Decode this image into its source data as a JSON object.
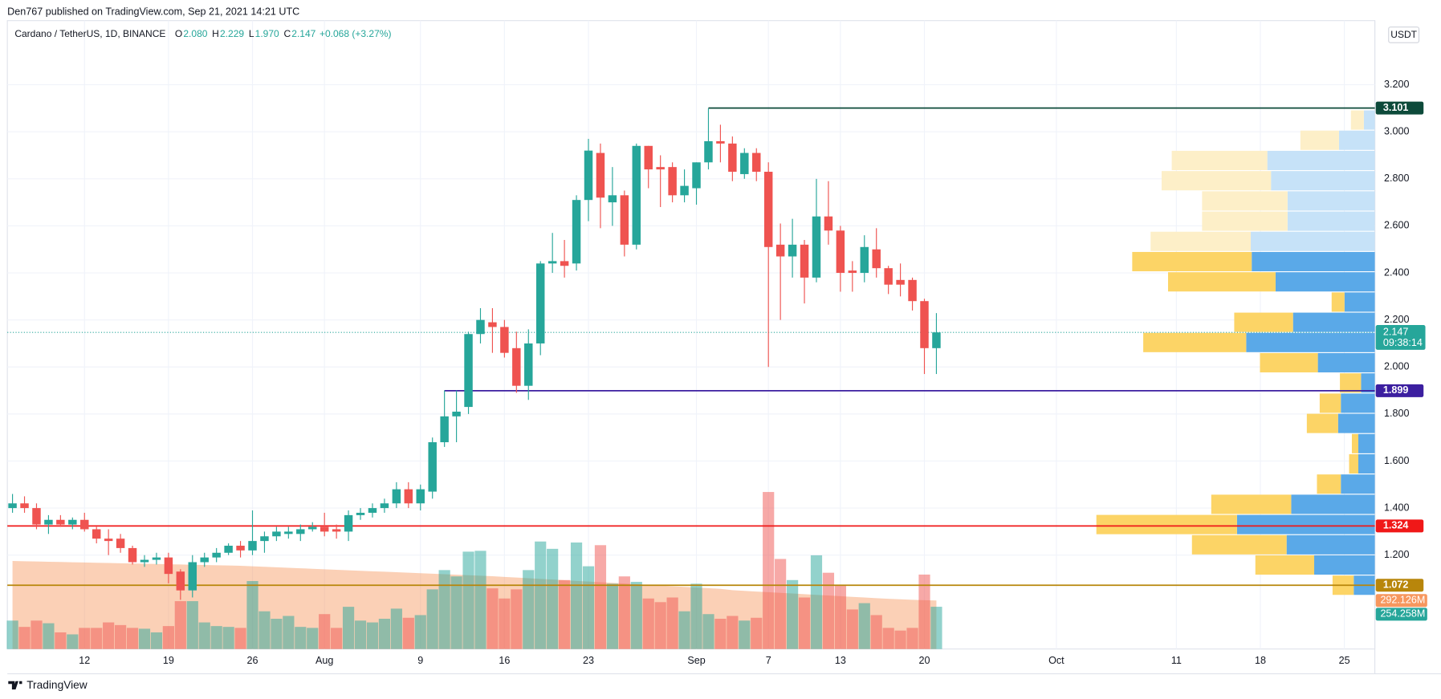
{
  "chart_data": {
    "type": "candlestick",
    "header": "Den767 published on TradingView.com, Sep 21, 2021 14:21 UTC",
    "title": "Cardano / TetherUS, 1D, BINANCE",
    "legend": [
      {
        "key": "O",
        "value": "2.080"
      },
      {
        "key": "H",
        "value": "2.229"
      },
      {
        "key": "L",
        "value": "1.970"
      },
      {
        "key": "C",
        "value": "2.147"
      }
    ],
    "change": "+0.068 (+3.27%)",
    "currency": "USDT",
    "countdown": "09:38:14",
    "brand": "TradingView",
    "up_color": "#26a69a",
    "down_color": "#ef5350",
    "open": [
      1.4,
      1.42,
      1.4,
      1.33,
      1.35,
      1.33,
      1.35,
      1.31,
      1.27,
      1.27,
      1.23,
      1.17,
      1.18,
      1.19,
      1.13,
      1.05,
      1.17,
      1.19,
      1.21,
      1.24,
      1.22,
      1.26,
      1.28,
      1.29,
      1.29,
      1.31,
      1.32,
      1.31,
      1.3,
      1.37,
      1.38,
      1.4,
      1.42,
      1.48,
      1.42,
      1.47,
      1.68,
      1.79,
      1.83,
      2.14,
      2.19,
      2.17,
      2.08,
      1.92,
      2.1,
      2.44,
      2.45,
      2.44,
      2.71,
      2.91,
      2.7,
      2.73,
      2.52,
      2.94,
      2.85,
      2.85,
      2.73,
      2.76,
      2.87,
      2.96,
      2.95,
      2.82,
      2.91,
      2.83,
      2.52,
      2.47,
      2.52,
      2.38,
      2.64,
      2.58,
      2.41,
      2.4,
      2.5,
      2.42,
      2.37,
      2.37,
      2.28,
      2.08
    ],
    "high": [
      1.46,
      1.45,
      1.42,
      1.37,
      1.37,
      1.36,
      1.38,
      1.32,
      1.31,
      1.29,
      1.24,
      1.2,
      1.21,
      1.21,
      1.14,
      1.2,
      1.21,
      1.23,
      1.25,
      1.26,
      1.39,
      1.3,
      1.32,
      1.32,
      1.33,
      1.34,
      1.38,
      1.33,
      1.39,
      1.4,
      1.42,
      1.44,
      1.51,
      1.51,
      1.5,
      1.7,
      1.9,
      1.9,
      2.15,
      2.25,
      2.25,
      2.2,
      2.15,
      2.16,
      2.45,
      2.57,
      2.54,
      2.73,
      2.97,
      2.95,
      2.85,
      2.75,
      2.95,
      2.94,
      2.9,
      2.87,
      2.84,
      2.87,
      3.1,
      3.03,
      2.98,
      2.93,
      2.93,
      2.87,
      2.61,
      2.63,
      2.54,
      2.8,
      2.79,
      2.6,
      2.45,
      2.56,
      2.59,
      2.43,
      2.44,
      2.38,
      2.29,
      2.229
    ],
    "low": [
      1.38,
      1.38,
      1.31,
      1.29,
      1.32,
      1.31,
      1.3,
      1.25,
      1.2,
      1.21,
      1.16,
      1.15,
      1.16,
      1.08,
      1.01,
      1.02,
      1.15,
      1.17,
      1.2,
      1.19,
      1.2,
      1.21,
      1.26,
      1.27,
      1.26,
      1.3,
      1.28,
      1.27,
      1.26,
      1.35,
      1.36,
      1.38,
      1.4,
      1.4,
      1.39,
      1.44,
      1.66,
      1.68,
      1.8,
      2.1,
      2.06,
      2.04,
      1.89,
      1.86,
      2.05,
      2.4,
      2.38,
      2.41,
      2.62,
      2.59,
      2.6,
      2.47,
      2.5,
      2.76,
      2.68,
      2.7,
      2.7,
      2.69,
      2.84,
      2.87,
      2.79,
      2.8,
      2.79,
      2.0,
      2.2,
      2.38,
      2.27,
      2.36,
      2.52,
      2.32,
      2.32,
      2.36,
      2.38,
      2.31,
      2.3,
      2.24,
      1.97,
      1.97
    ],
    "close": [
      1.42,
      1.4,
      1.33,
      1.35,
      1.33,
      1.35,
      1.31,
      1.27,
      1.26,
      1.23,
      1.17,
      1.18,
      1.19,
      1.12,
      1.05,
      1.17,
      1.19,
      1.21,
      1.24,
      1.22,
      1.26,
      1.28,
      1.3,
      1.3,
      1.31,
      1.32,
      1.3,
      1.3,
      1.37,
      1.38,
      1.4,
      1.42,
      1.48,
      1.42,
      1.48,
      1.68,
      1.79,
      1.81,
      2.14,
      2.2,
      2.17,
      2.06,
      1.92,
      2.1,
      2.44,
      2.45,
      2.43,
      2.71,
      2.92,
      2.72,
      2.73,
      2.52,
      2.94,
      2.84,
      2.84,
      2.73,
      2.77,
      2.87,
      2.96,
      2.95,
      2.83,
      2.91,
      2.83,
      2.51,
      2.47,
      2.52,
      2.38,
      2.64,
      2.58,
      2.4,
      2.4,
      2.51,
      2.42,
      2.35,
      2.35,
      2.28,
      2.08,
      2.147
    ],
    "volume": [
      171,
      133,
      171,
      155,
      100,
      88,
      127,
      127,
      160,
      144,
      127,
      122,
      100,
      138,
      288,
      288,
      160,
      138,
      133,
      127,
      409,
      227,
      182,
      199,
      133,
      127,
      210,
      127,
      254,
      171,
      160,
      182,
      243,
      188,
      204,
      359,
      475,
      437,
      586,
      591,
      365,
      304,
      359,
      475,
      647,
      603,
      415,
      641,
      498,
      625,
      393,
      437,
      404,
      304,
      282,
      310,
      227,
      393,
      210,
      182,
      199,
      171,
      188,
      945,
      542,
      415,
      310,
      564,
      459,
      387,
      238,
      276,
      204,
      127,
      111,
      127,
      448,
      254.258
    ],
    "volume_label": "254.258M",
    "volume_ma": [
      530,
      528,
      527,
      525,
      524,
      522,
      521,
      519,
      518,
      516,
      515,
      513,
      512,
      510,
      509,
      507,
      506,
      504,
      503,
      501,
      498,
      495,
      492,
      489,
      486,
      483,
      480,
      477,
      474,
      471,
      468,
      465,
      462,
      459,
      456,
      453,
      450,
      447,
      444,
      441,
      438,
      434,
      430,
      426,
      422,
      418,
      414,
      410,
      406,
      402,
      398,
      394,
      390,
      386,
      382,
      378,
      374,
      370,
      366,
      362,
      354,
      350,
      346,
      342,
      338,
      334,
      330,
      326,
      322,
      318,
      314,
      310,
      306,
      302,
      299,
      296,
      294,
      292.126
    ],
    "volume_ma_label": "292.126M",
    "volume_ma_color": "#f7975e",
    "volume_ylim": [
      0,
      1200
    ],
    "ylim": [
      0.8008,
      3.4727
    ],
    "yticks": [
      {
        "value": 1.2,
        "label": "1.200"
      },
      {
        "value": 1.4,
        "label": "1.400"
      },
      {
        "value": 1.6,
        "label": "1.600"
      },
      {
        "value": 1.8,
        "label": "1.800"
      },
      {
        "value": 2.0,
        "label": "2.000"
      },
      {
        "value": 2.2,
        "label": "2.200"
      },
      {
        "value": 2.4,
        "label": "2.400"
      },
      {
        "value": 2.6,
        "label": "2.600"
      },
      {
        "value": 2.8,
        "label": "2.800"
      },
      {
        "value": 3.0,
        "label": "3.000"
      },
      {
        "value": 3.2,
        "label": "3.200"
      }
    ],
    "xlim": [
      -0.43,
      113.54
    ],
    "xticks": [
      {
        "value": 6,
        "label": "12"
      },
      {
        "value": 13,
        "label": "19"
      },
      {
        "value": 20,
        "label": "26"
      },
      {
        "value": 26,
        "label": "Aug"
      },
      {
        "value": 34,
        "label": "9"
      },
      {
        "value": 41,
        "label": "16"
      },
      {
        "value": 48,
        "label": "23"
      },
      {
        "value": 57,
        "label": "Sep"
      },
      {
        "value": 63,
        "label": "7"
      },
      {
        "value": 69,
        "label": "13"
      },
      {
        "value": 76,
        "label": "20"
      },
      {
        "value": 87,
        "label": "Oct"
      },
      {
        "value": 97,
        "label": "11"
      },
      {
        "value": 104,
        "label": "18"
      },
      {
        "value": 111,
        "label": "25"
      }
    ],
    "grid": true,
    "levels": [
      {
        "value": 3.101,
        "color": "#0d4a3a"
      },
      {
        "value": 1.899,
        "color": "#3c1fa0"
      },
      {
        "value": 1.324,
        "color": "#f01818"
      },
      {
        "value": 1.072,
        "color": "#b8860b"
      }
    ],
    "volume_profile": {
      "bins": [
        1.027,
        1.113,
        1.199,
        1.285,
        1.371,
        1.457,
        1.543,
        1.629,
        1.715,
        1.801,
        1.887,
        1.973,
        2.059,
        2.145,
        2.231,
        2.317,
        2.403,
        2.489,
        2.575,
        2.661,
        2.747,
        2.833,
        2.919,
        3.005,
        3.091
      ],
      "up": [
        23,
        66,
        96,
        150,
        91,
        37,
        18,
        18,
        40,
        37,
        15,
        62,
        140,
        89,
        33,
        108,
        134,
        135,
        95,
        95,
        113,
        117,
        39,
        12
      ],
      "down": [
        23,
        64,
        103,
        153,
        87,
        26,
        10,
        7,
        34,
        23,
        23,
        63,
        112,
        64,
        14,
        117,
        130,
        109,
        93,
        93,
        119,
        104,
        42,
        14
      ],
      "value_area_high": 2.489,
      "up_color": "#5aa9e8",
      "down_color": "#fcd466",
      "up_color_outside": "#c6e2f8",
      "down_color_outside": "#fdefc8"
    }
  }
}
